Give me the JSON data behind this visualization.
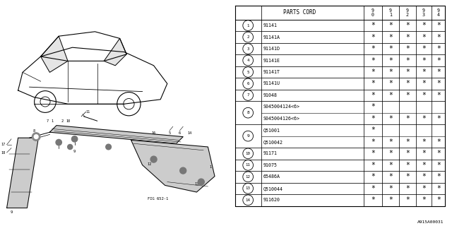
{
  "figure_code": "A915A00031",
  "fig_ref": "FIG 652-1",
  "table": {
    "headers": [
      "PARTS CORD",
      "9\n0",
      "9\n1",
      "9\n2",
      "9\n3",
      "9\n4"
    ],
    "rows": [
      {
        "num": "1",
        "part": "91141",
        "marks": [
          true,
          true,
          true,
          true,
          true
        ]
      },
      {
        "num": "2",
        "part": "91141A",
        "marks": [
          true,
          true,
          true,
          true,
          true
        ]
      },
      {
        "num": "3",
        "part": "91141D",
        "marks": [
          true,
          true,
          true,
          true,
          true
        ]
      },
      {
        "num": "4",
        "part": "91141E",
        "marks": [
          true,
          true,
          true,
          true,
          true
        ]
      },
      {
        "num": "5",
        "part": "91141T",
        "marks": [
          true,
          true,
          true,
          true,
          true
        ]
      },
      {
        "num": "6",
        "part": "91141U",
        "marks": [
          true,
          true,
          true,
          true,
          true
        ]
      },
      {
        "num": "7",
        "part": "91048",
        "marks": [
          true,
          true,
          true,
          true,
          true
        ]
      },
      {
        "num": "8",
        "part_a": "S045004124<6>",
        "marks_a": [
          true,
          false,
          false,
          false,
          false
        ],
        "part_b": "S045004126<6>",
        "marks_b": [
          true,
          true,
          true,
          true,
          true
        ],
        "split": true
      },
      {
        "num": "9",
        "part_a": "Q51001",
        "marks_a": [
          true,
          false,
          false,
          false,
          false
        ],
        "part_b": "Q510042",
        "marks_b": [
          true,
          true,
          true,
          true,
          true
        ],
        "split": true
      },
      {
        "num": "10",
        "part": "91171",
        "marks": [
          true,
          true,
          true,
          true,
          true
        ]
      },
      {
        "num": "11",
        "part": "91075",
        "marks": [
          true,
          true,
          true,
          true,
          true
        ]
      },
      {
        "num": "12",
        "part": "65486A",
        "marks": [
          true,
          true,
          true,
          true,
          true
        ]
      },
      {
        "num": "13",
        "part": "Q510044",
        "marks": [
          true,
          true,
          true,
          true,
          true
        ]
      },
      {
        "num": "14",
        "part": "911620",
        "marks": [
          true,
          true,
          true,
          true,
          true
        ]
      }
    ]
  },
  "bg_color": "#ffffff",
  "line_color": "#000000"
}
